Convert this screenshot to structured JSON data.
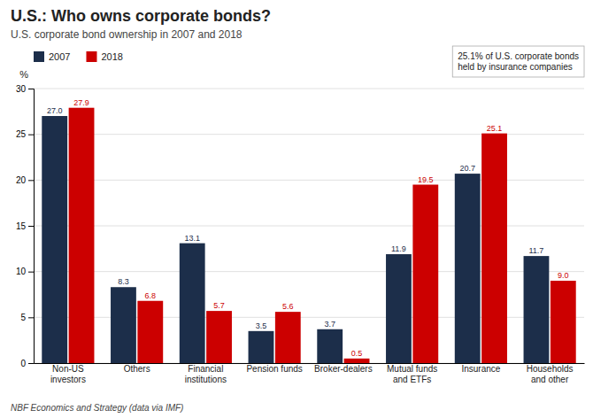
{
  "chart_data": {
    "type": "bar",
    "title": "U.S.: Who owns corporate bonds?",
    "subtitle": "U.S. corporate bond ownership in 2007 and 2018",
    "footnote": "NBF Economics and Strategy (data via IMF)",
    "y_label": "%",
    "annotation": "25.1% of U.S. corporate bonds\nheld by insurance companies",
    "categories": [
      "Non-US\ninvestors",
      "Others",
      "Financial\ninstitutions",
      "Pension funds",
      "Broker-dealers",
      "Mutual funds\nand ETFs",
      "Insurance",
      "Households\nand other"
    ],
    "series": [
      {
        "name": "2007",
        "color": "#1c2e4a",
        "values": [
          27.0,
          8.3,
          13.1,
          3.5,
          3.7,
          11.9,
          20.7,
          11.7
        ],
        "value_labels": [
          "27.0",
          "8.3",
          "13.1",
          "3.5",
          "3.7",
          "11.9",
          "20.7",
          "11.7"
        ]
      },
      {
        "name": "2018",
        "color": "#cc0000",
        "values": [
          27.9,
          6.8,
          5.7,
          5.6,
          0.5,
          19.5,
          25.1,
          9.0
        ],
        "value_labels": [
          "27.9",
          "6.8",
          "5.7",
          "5.6",
          "0.5",
          "19.5",
          "25.1",
          "9.0"
        ]
      }
    ],
    "ylim": [
      0,
      30
    ],
    "yticks": [
      0,
      5,
      10,
      15,
      20,
      25,
      30
    ],
    "grid": true,
    "legend": "top",
    "data_labels": true
  }
}
